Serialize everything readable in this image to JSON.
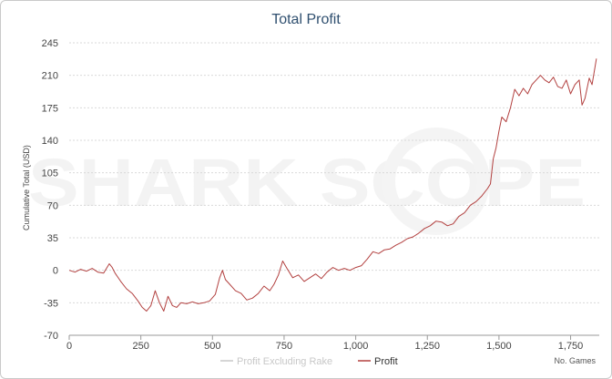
{
  "watermark": "SHARK SCOPE",
  "colors": {
    "profit": "#b2403f",
    "profit_excluding_rake": "#c8c8c8",
    "grid": "#d9d9d9",
    "title": "#2f4f6f"
  },
  "chart_data": {
    "type": "line",
    "title": "Total Profit",
    "xlabel": "No. Games",
    "ylabel": "Cumulative Total (USD)",
    "xlim": [
      0,
      1850
    ],
    "ylim": [
      -70,
      245
    ],
    "xticks": [
      0,
      250,
      500,
      750,
      1000,
      1250,
      1500,
      1750
    ],
    "xtick_labels": [
      "0",
      "250",
      "500",
      "750",
      "1,000",
      "1,250",
      "1,500",
      "1,750"
    ],
    "yticks": [
      -70,
      -35,
      0,
      35,
      70,
      105,
      140,
      175,
      210,
      245
    ],
    "grid": true,
    "legend_position": "bottom",
    "series": [
      {
        "name": "Profit Excluding Rake",
        "visible": false,
        "points": []
      },
      {
        "name": "Profit",
        "points": [
          [
            0,
            0
          ],
          [
            20,
            -2
          ],
          [
            40,
            1
          ],
          [
            60,
            -1
          ],
          [
            80,
            2
          ],
          [
            100,
            -2
          ],
          [
            120,
            -3
          ],
          [
            140,
            7
          ],
          [
            150,
            3
          ],
          [
            160,
            -3
          ],
          [
            180,
            -12
          ],
          [
            200,
            -20
          ],
          [
            220,
            -25
          ],
          [
            240,
            -33
          ],
          [
            255,
            -40
          ],
          [
            270,
            -44
          ],
          [
            285,
            -38
          ],
          [
            300,
            -22
          ],
          [
            315,
            -35
          ],
          [
            330,
            -44
          ],
          [
            345,
            -28
          ],
          [
            360,
            -38
          ],
          [
            375,
            -40
          ],
          [
            390,
            -35
          ],
          [
            410,
            -36
          ],
          [
            430,
            -34
          ],
          [
            450,
            -36
          ],
          [
            470,
            -35
          ],
          [
            490,
            -33
          ],
          [
            510,
            -26
          ],
          [
            525,
            -8
          ],
          [
            535,
            0
          ],
          [
            545,
            -10
          ],
          [
            560,
            -15
          ],
          [
            580,
            -22
          ],
          [
            600,
            -25
          ],
          [
            620,
            -32
          ],
          [
            640,
            -30
          ],
          [
            660,
            -25
          ],
          [
            680,
            -17
          ],
          [
            700,
            -22
          ],
          [
            715,
            -15
          ],
          [
            730,
            -5
          ],
          [
            745,
            10
          ],
          [
            760,
            2
          ],
          [
            780,
            -8
          ],
          [
            800,
            -5
          ],
          [
            820,
            -12
          ],
          [
            840,
            -8
          ],
          [
            860,
            -4
          ],
          [
            880,
            -9
          ],
          [
            900,
            -2
          ],
          [
            920,
            3
          ],
          [
            940,
            0
          ],
          [
            960,
            2
          ],
          [
            980,
            0
          ],
          [
            1000,
            3
          ],
          [
            1020,
            5
          ],
          [
            1040,
            12
          ],
          [
            1060,
            20
          ],
          [
            1080,
            18
          ],
          [
            1100,
            22
          ],
          [
            1120,
            23
          ],
          [
            1140,
            27
          ],
          [
            1160,
            30
          ],
          [
            1180,
            34
          ],
          [
            1200,
            36
          ],
          [
            1220,
            40
          ],
          [
            1240,
            45
          ],
          [
            1260,
            48
          ],
          [
            1280,
            53
          ],
          [
            1300,
            52
          ],
          [
            1320,
            48
          ],
          [
            1340,
            50
          ],
          [
            1360,
            58
          ],
          [
            1380,
            62
          ],
          [
            1400,
            70
          ],
          [
            1420,
            74
          ],
          [
            1440,
            80
          ],
          [
            1460,
            88
          ],
          [
            1470,
            93
          ],
          [
            1480,
            120
          ],
          [
            1490,
            132
          ],
          [
            1500,
            150
          ],
          [
            1510,
            165
          ],
          [
            1525,
            160
          ],
          [
            1540,
            175
          ],
          [
            1555,
            195
          ],
          [
            1570,
            188
          ],
          [
            1585,
            196
          ],
          [
            1600,
            190
          ],
          [
            1615,
            200
          ],
          [
            1630,
            205
          ],
          [
            1645,
            210
          ],
          [
            1660,
            205
          ],
          [
            1675,
            202
          ],
          [
            1690,
            208
          ],
          [
            1705,
            198
          ],
          [
            1720,
            196
          ],
          [
            1735,
            205
          ],
          [
            1750,
            190
          ],
          [
            1765,
            200
          ],
          [
            1780,
            205
          ],
          [
            1790,
            178
          ],
          [
            1800,
            185
          ],
          [
            1815,
            207
          ],
          [
            1825,
            200
          ],
          [
            1840,
            228
          ]
        ]
      }
    ]
  }
}
